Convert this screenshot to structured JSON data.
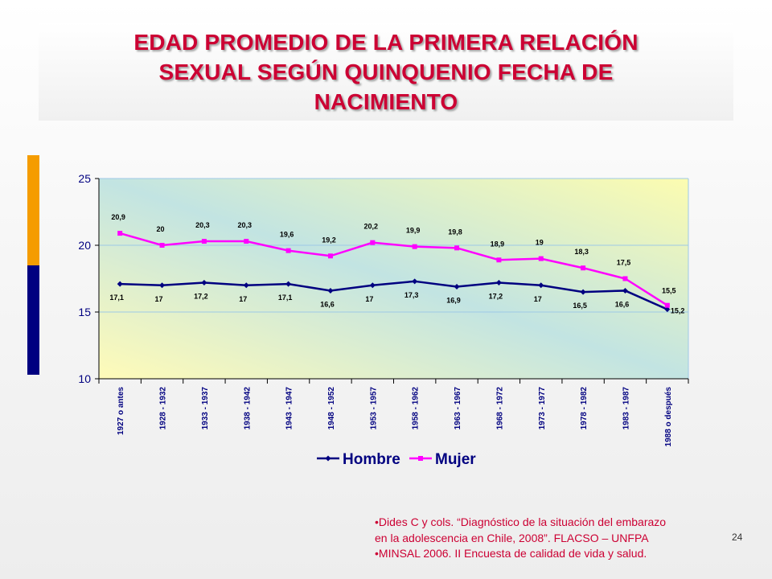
{
  "slide": {
    "title_lines": [
      "EDAD PROMEDIO DE LA PRIMERA RELACIÓN",
      "SEXUAL SEGÚN QUINQUENIO FECHA DE",
      "NACIMIENTO"
    ],
    "references": [
      "•Dides C y cols. “Diagnóstico de la situación del embarazo",
      "en la adolescencia en Chile, 2008”. FLACSO – UNFPA",
      "•MINSAL 2006. II Encuesta de calidad de vida y salud."
    ],
    "page_number": "24"
  },
  "colors": {
    "title": "#cc0033",
    "hombre": "#000080",
    "mujer": "#ff00ff",
    "accent_orange": "#f59c00",
    "accent_blue": "#000080"
  },
  "chart_data": {
    "type": "line",
    "categories": [
      "1927 o antes",
      "1928 - 1932",
      "1933 - 1937",
      "1938 - 1942",
      "1943 - 1947",
      "1948 - 1952",
      "1953 - 1957",
      "1958 - 1962",
      "1963 - 1967",
      "1968 - 1972",
      "1973 - 1977",
      "1978 - 1982",
      "1983 - 1987",
      "1988 o después"
    ],
    "series": [
      {
        "name": "Hombre",
        "values": [
          17.1,
          17,
          17.2,
          17,
          17.1,
          16.6,
          17,
          17.3,
          16.9,
          17.2,
          17,
          16.5,
          16.6,
          15.2
        ],
        "labels": [
          "17,1",
          "17",
          "17,2",
          "17",
          "17,1",
          "16,6",
          "17",
          "17,3",
          "16,9",
          "17,2",
          "17",
          "16,5",
          "16,6",
          "15,2"
        ]
      },
      {
        "name": "Mujer",
        "values": [
          20.9,
          20,
          20.3,
          20.3,
          19.6,
          19.2,
          20.2,
          19.9,
          19.8,
          18.9,
          19,
          18.3,
          17.5,
          15.5
        ],
        "labels": [
          "20,9",
          "20",
          "20,3",
          "20,3",
          "19,6",
          "19,2",
          "20,2",
          "19,9",
          "19,8",
          "18,9",
          "19",
          "18,3",
          "17,5",
          "15,5"
        ]
      }
    ],
    "title": "",
    "xlabel": "",
    "ylabel": "",
    "ylim": [
      10,
      25
    ],
    "yticks": [
      10,
      15,
      20,
      25
    ],
    "grid": true,
    "legend": "bottom"
  }
}
